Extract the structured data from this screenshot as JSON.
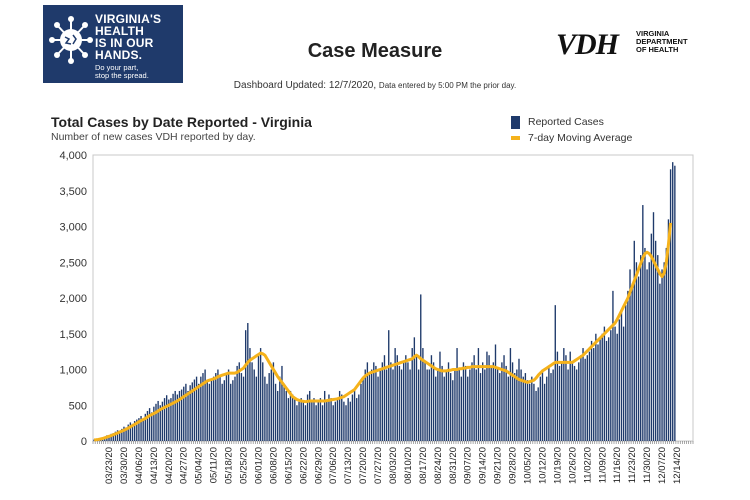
{
  "header": {
    "logo_left": {
      "lines": [
        "VIRGINIA'S",
        "HEALTH",
        "IS IN OUR",
        "HANDS."
      ],
      "tagline": [
        "Do your part,",
        "stop the spread."
      ]
    },
    "title": "Case Measure",
    "logo_right": {
      "mark": "VDH",
      "dept": [
        "VIRGINIA",
        "DEPARTMENT",
        "OF HEALTH"
      ]
    },
    "updated": "Dashboard Updated: 12/7/2020,",
    "updated_note": "Data entered by 5:00 PM the prior day."
  },
  "chart_meta": {
    "title": "Total Cases by Date Reported - Virginia",
    "subtitle": "Number of new cases VDH reported by day.",
    "legend": [
      "Reported Cases",
      "7-day Moving Average"
    ]
  },
  "colors": {
    "bar": "#1f3a6b",
    "line": "#f5b21b",
    "logo_bg": "#1f3a6b"
  },
  "chart_data": {
    "type": "bar",
    "x_start": "03/16/20",
    "x_labels": [
      "03/23/20",
      "03/30/20",
      "04/06/20",
      "04/13/20",
      "04/20/20",
      "04/27/20",
      "05/04/20",
      "05/11/20",
      "05/18/20",
      "05/25/20",
      "06/01/20",
      "06/08/20",
      "06/15/20",
      "06/22/20",
      "06/29/20",
      "07/06/20",
      "07/13/20",
      "07/20/20",
      "07/27/20",
      "08/03/20",
      "08/10/20",
      "08/17/20",
      "08/24/20",
      "08/31/20",
      "09/07/20",
      "09/14/20",
      "09/21/20",
      "09/28/20",
      "10/05/20",
      "10/12/20",
      "10/19/20",
      "10/26/20",
      "11/02/20",
      "11/09/20",
      "11/16/20",
      "11/23/20",
      "11/30/20",
      "12/07/20",
      "12/14/20"
    ],
    "y_ticks": [
      "0",
      "500",
      "1,000",
      "1,500",
      "2,000",
      "2,500",
      "3,000",
      "3,500",
      "4,000"
    ],
    "ylim": [
      0,
      4000
    ],
    "series": [
      {
        "name": "Reported Cases",
        "type": "bar",
        "values": [
          20,
          25,
          30,
          35,
          45,
          60,
          80,
          70,
          100,
          110,
          130,
          150,
          140,
          170,
          200,
          190,
          230,
          260,
          240,
          280,
          300,
          320,
          350,
          300,
          380,
          420,
          460,
          400,
          480,
          520,
          560,
          500,
          550,
          600,
          640,
          580,
          600,
          660,
          700,
          650,
          700,
          720,
          760,
          800,
          700,
          780,
          820,
          860,
          900,
          800,
          900,
          950,
          1000,
          850,
          800,
          850,
          900,
          950,
          1000,
          900,
          800,
          850,
          950,
          1000,
          800,
          850,
          900,
          1050,
          1100,
          950,
          900,
          1550,
          1650,
          1300,
          1100,
          1000,
          900,
          1200,
          1300,
          1100,
          900,
          800,
          950,
          1000,
          1100,
          800,
          700,
          900,
          1050,
          800,
          700,
          600,
          700,
          650,
          600,
          500,
          550,
          600,
          550,
          500,
          650,
          700,
          550,
          600,
          500,
          550,
          600,
          500,
          700,
          550,
          650,
          600,
          500,
          550,
          600,
          700,
          650,
          550,
          500,
          600,
          550,
          650,
          700,
          600,
          650,
          800,
          900,
          1000,
          1100,
          950,
          1000,
          1100,
          1050,
          900,
          1000,
          1100,
          1200,
          1000,
          1550,
          1100,
          1000,
          1300,
          1200,
          1050,
          1000,
          1100,
          1200,
          1100,
          1000,
          1300,
          1450,
          1200,
          1000,
          2050,
          1300,
          1100,
          1000,
          1000,
          1200,
          1100,
          900,
          1000,
          1250,
          1050,
          900,
          1000,
          1100,
          950,
          850,
          1000,
          1300,
          1000,
          900,
          1100,
          1050,
          900,
          1000,
          1100,
          1200,
          1000,
          1300,
          950,
          1100,
          1000,
          1250,
          1200,
          1050,
          1100,
          1350,
          1000,
          950,
          1100,
          1200,
          1050,
          900,
          1300,
          1100,
          950,
          1000,
          1150,
          1000,
          900,
          950,
          850,
          800,
          900,
          800,
          700,
          750,
          900,
          1000,
          800,
          900,
          1050,
          950,
          1000,
          1900,
          1250,
          1050,
          1100,
          1300,
          1200,
          1000,
          1250,
          1100,
          1050,
          1000,
          1100,
          1200,
          1300,
          1150,
          1200,
          1250,
          1400,
          1300,
          1500,
          1350,
          1450,
          1500,
          1600,
          1400,
          1450,
          1550,
          2100,
          1600,
          1500,
          1700,
          1800,
          1600,
          1900,
          2100,
          2400,
          2200,
          2800,
          2500,
          2300,
          2600,
          3300,
          2700,
          2400,
          2500,
          2900,
          3200,
          2800,
          2600,
          2200,
          2400,
          2500,
          2700,
          3100,
          3800,
          3900,
          3850
        ],
        "ma": [
          15,
          18,
          22,
          28,
          35,
          45,
          55,
          65,
          75,
          88,
          100,
          112,
          125,
          138,
          150,
          165,
          180,
          198,
          215,
          232,
          250,
          268,
          285,
          300,
          315,
          335,
          355,
          370,
          385,
          400,
          420,
          440,
          455,
          470,
          485,
          500,
          515,
          530,
          545,
          560,
          580,
          600,
          620,
          640,
          660,
          680,
          700,
          720,
          740,
          760,
          780,
          800,
          820,
          840,
          850,
          860,
          870,
          880,
          900,
          910,
          920,
          930,
          940,
          950,
          950,
          950,
          950,
          960,
          980,
          1000,
          1020,
          1060,
          1100,
          1130,
          1150,
          1170,
          1190,
          1210,
          1230,
          1220,
          1200,
          1150,
          1100,
          1050,
          1000,
          950,
          900,
          860,
          820,
          780,
          740,
          700,
          660,
          620,
          600,
          580,
          570,
          560,
          555,
          550,
          555,
          560,
          560,
          560,
          560,
          560,
          560,
          560,
          560,
          565,
          570,
          575,
          580,
          585,
          590,
          600,
          610,
          620,
          640,
          660,
          680,
          700,
          720,
          760,
          800,
          840,
          880,
          910,
          930,
          950,
          960,
          970,
          980,
          990,
          1000,
          1010,
          1020,
          1030,
          1040,
          1050,
          1060,
          1070,
          1080,
          1090,
          1100,
          1110,
          1120,
          1130,
          1140,
          1150,
          1180,
          1200,
          1180,
          1150,
          1130,
          1110,
          1090,
          1070,
          1050,
          1030,
          1010,
          1000,
          990,
          980,
          980,
          980,
          990,
          990,
          1000,
          1000,
          1000,
          1010,
          1010,
          1020,
          1020,
          1030,
          1030,
          1040,
          1040,
          1040,
          1040,
          1040,
          1040,
          1040,
          1040,
          1040,
          1040,
          1040,
          1030,
          1020,
          1010,
          1000,
          990,
          980,
          960,
          940,
          920,
          900,
          880,
          860,
          850,
          840,
          830,
          820,
          830,
          840,
          850,
          880,
          920,
          950,
          980,
          1000,
          1020,
          1040,
          1060,
          1080,
          1100,
          1100,
          1100,
          1100,
          1100,
          1100,
          1100,
          1100,
          1100,
          1120,
          1140,
          1160,
          1180,
          1200,
          1230,
          1260,
          1290,
          1320,
          1350,
          1380,
          1410,
          1440,
          1470,
          1500,
          1530,
          1560,
          1590,
          1620,
          1650,
          1700,
          1760,
          1820,
          1880,
          1940,
          2000,
          2080,
          2160,
          2240,
          2320,
          2400,
          2480,
          2560,
          2620,
          2640,
          2620,
          2580,
          2520,
          2460,
          2400,
          2340,
          2300,
          2350,
          2500,
          2750,
          3050
        ]
      }
    ]
  }
}
